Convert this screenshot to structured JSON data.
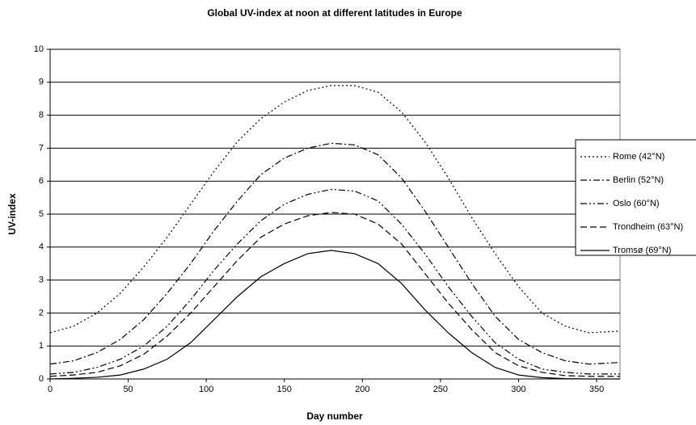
{
  "chart_data": {
    "type": "line",
    "title": "Global UV-index at noon at different latitudes in Europe",
    "xlabel": "Day number",
    "ylabel": "UV-index",
    "x": [
      0,
      15,
      30,
      45,
      60,
      75,
      90,
      105,
      120,
      135,
      150,
      165,
      180,
      195,
      210,
      225,
      240,
      255,
      270,
      285,
      300,
      315,
      330,
      345,
      365
    ],
    "series": [
      {
        "name": "Rome (42°N)",
        "color": "#000000",
        "dash": "2,3",
        "values": [
          1.4,
          1.6,
          2.0,
          2.6,
          3.4,
          4.3,
          5.3,
          6.3,
          7.2,
          7.9,
          8.4,
          8.75,
          8.9,
          8.9,
          8.7,
          8.1,
          7.2,
          6.1,
          4.9,
          3.8,
          2.8,
          2.0,
          1.6,
          1.4,
          1.45
        ]
      },
      {
        "name": "Berlin (52°N)",
        "color": "#000000",
        "dash": "8,3,2,3",
        "values": [
          0.45,
          0.55,
          0.8,
          1.2,
          1.8,
          2.6,
          3.5,
          4.5,
          5.4,
          6.2,
          6.7,
          7.0,
          7.15,
          7.1,
          6.8,
          6.1,
          5.1,
          4.0,
          2.9,
          1.9,
          1.2,
          0.8,
          0.55,
          0.45,
          0.5
        ]
      },
      {
        "name": "Oslo (60°N)",
        "color": "#000000",
        "dash": "8,3,2,3,2,3",
        "values": [
          0.15,
          0.2,
          0.35,
          0.6,
          1.0,
          1.6,
          2.4,
          3.3,
          4.1,
          4.8,
          5.3,
          5.6,
          5.75,
          5.7,
          5.4,
          4.7,
          3.8,
          2.8,
          1.9,
          1.1,
          0.6,
          0.3,
          0.2,
          0.15,
          0.15
        ]
      },
      {
        "name": "Trondheim (63°N)",
        "color": "#000000",
        "dash": "8,4",
        "values": [
          0.08,
          0.12,
          0.2,
          0.4,
          0.75,
          1.3,
          2.0,
          2.8,
          3.6,
          4.3,
          4.7,
          4.95,
          5.05,
          5.0,
          4.7,
          4.1,
          3.2,
          2.3,
          1.5,
          0.8,
          0.4,
          0.2,
          0.1,
          0.08,
          0.08
        ]
      },
      {
        "name": "Tromsø (69°N)",
        "color": "#000000",
        "dash": "none",
        "values": [
          0,
          0.02,
          0.05,
          0.12,
          0.3,
          0.6,
          1.1,
          1.8,
          2.5,
          3.1,
          3.5,
          3.8,
          3.9,
          3.8,
          3.5,
          2.9,
          2.1,
          1.4,
          0.8,
          0.35,
          0.12,
          0.04,
          0.01,
          0,
          0
        ]
      }
    ],
    "xlim": [
      0,
      365
    ],
    "xticks": [
      0,
      50,
      100,
      150,
      200,
      250,
      300,
      350
    ],
    "ylim": [
      0,
      10
    ],
    "yticks": [
      0,
      1,
      2,
      3,
      4,
      5,
      6,
      7,
      8,
      9,
      10
    ],
    "grid": true,
    "legend": "right"
  }
}
